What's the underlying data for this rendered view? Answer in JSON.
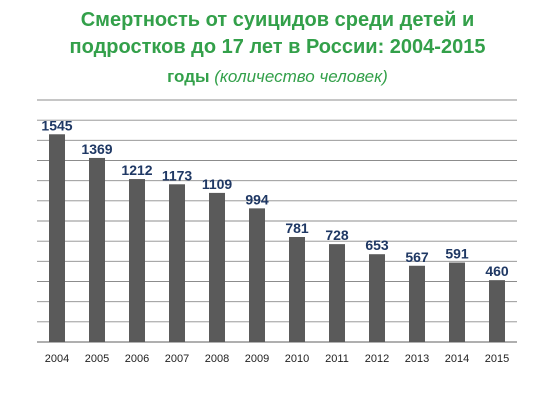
{
  "chart_data": {
    "type": "bar",
    "title_line1": "Смертность от суицидов среди детей и",
    "title_line2": "подростков до 17 лет в России: 2004-2015",
    "title_line3_main": "годы",
    "title_line3_sub": "(количество человек)",
    "categories": [
      "2004",
      "2005",
      "2006",
      "2007",
      "2008",
      "2009",
      "2010",
      "2011",
      "2012",
      "2013",
      "2014",
      "2015"
    ],
    "values": [
      1545,
      1369,
      1212,
      1173,
      1109,
      994,
      781,
      728,
      653,
      567,
      591,
      460
    ],
    "data_labels": [
      "1545",
      "1369",
      "1212",
      "1173",
      "1109",
      "994",
      "781",
      "728",
      "653",
      "567",
      "591",
      "460"
    ],
    "ylim": [
      0,
      1800
    ],
    "y_gridline_step": 150,
    "grid": true,
    "bar_color": "#5a5a5a",
    "label_color": "#1f3864",
    "title_color": "#33a04a"
  }
}
